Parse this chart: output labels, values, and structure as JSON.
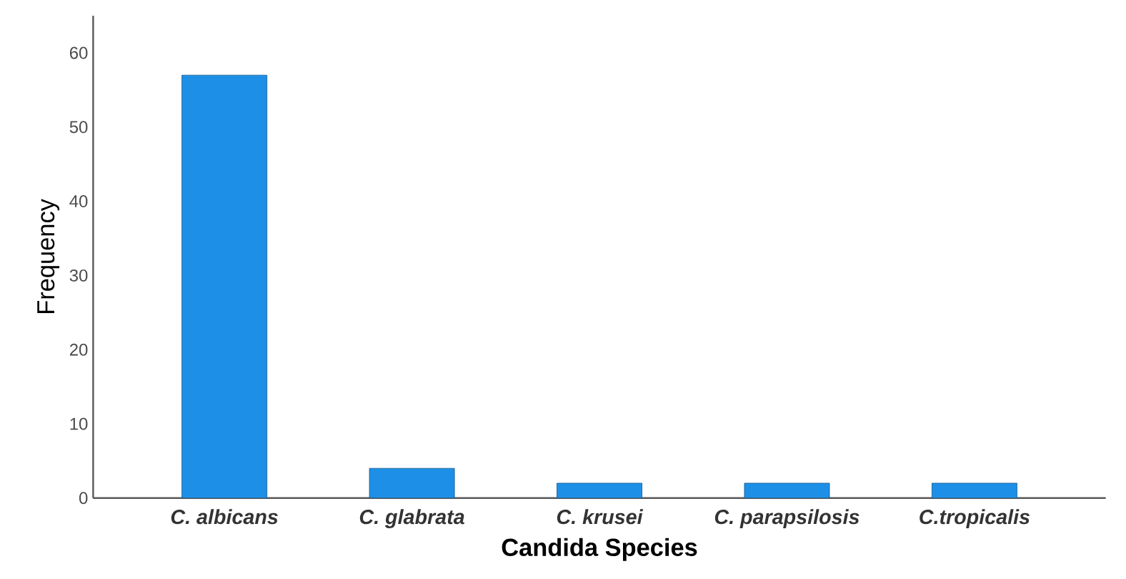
{
  "chart_data": {
    "type": "bar",
    "xlabel": "Candida Species",
    "ylabel": "Frequency",
    "categories": [
      "C. albicans",
      "C. glabrata",
      "C. krusei",
      "C. parapsilosis",
      "C.tropicalis"
    ],
    "values": [
      57,
      4,
      2,
      2,
      2
    ],
    "color": "#1e8fe6",
    "ylim": [
      0,
      65
    ],
    "yticks": [
      0,
      10,
      20,
      30,
      40,
      50,
      60
    ],
    "grid": false
  }
}
